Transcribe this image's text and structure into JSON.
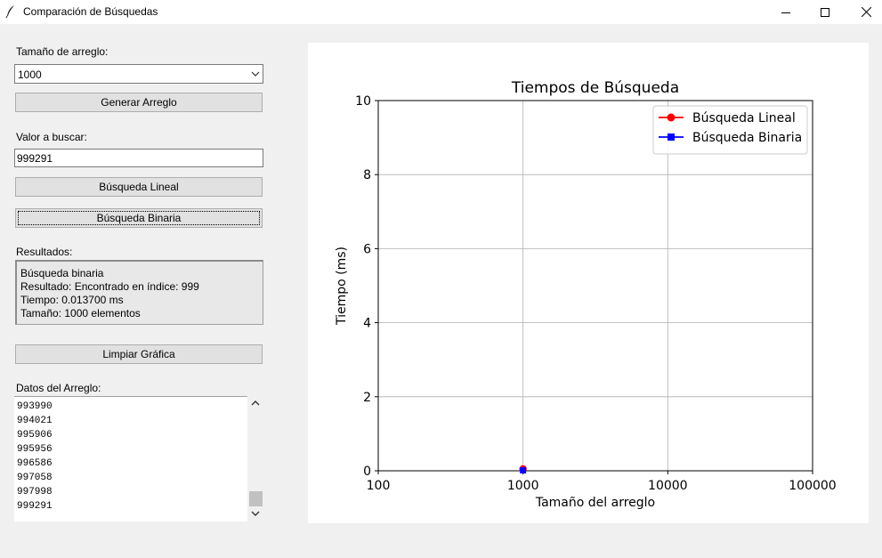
{
  "window": {
    "title": "Comparación de Búsquedas"
  },
  "controls": {
    "size_label": "Tamaño de arreglo:",
    "size_value": "1000",
    "generate_button": "Generar Arreglo",
    "search_label": "Valor a buscar:",
    "search_value": "999291",
    "linear_button": "Búsqueda Lineal",
    "binary_button": "Búsqueda Binaria",
    "results_label": "Resultados:",
    "results_lines": [
      "Búsqueda binaria",
      "Resultado: Encontrado en índice: 999",
      "Tiempo: 0.013700 ms",
      "Tamaño: 1000 elementos"
    ],
    "clear_button": "Limpiar Gráfica",
    "data_label": "Datos del Arreglo:",
    "data_rows": [
      "993990",
      "994021",
      "995906",
      "995956",
      "996586",
      "997058",
      "997998",
      "999291"
    ]
  },
  "chart_data": {
    "type": "line",
    "title": "Tiempos de Búsqueda",
    "xlabel": "Tamaño del arreglo",
    "ylabel": "Tiempo (ms)",
    "xscale": "log",
    "xlim": [
      100,
      100000
    ],
    "ylim": [
      0,
      10
    ],
    "x_ticks": [
      "100",
      "1000",
      "10000",
      "100000"
    ],
    "y_ticks": [
      "0",
      "2",
      "4",
      "6",
      "8",
      "10"
    ],
    "grid": true,
    "legend_position": "top-right",
    "series": [
      {
        "name": "Búsqueda Lineal",
        "color": "#ff0000",
        "marker": "circle",
        "points": [
          [
            1000,
            0.05
          ]
        ]
      },
      {
        "name": "Búsqueda Binaria",
        "color": "#0000ff",
        "marker": "square",
        "points": [
          [
            1000,
            0.0137
          ]
        ]
      }
    ]
  }
}
